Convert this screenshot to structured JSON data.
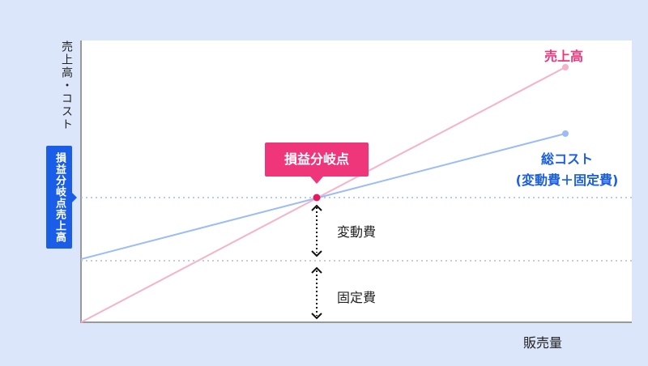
{
  "axes": {
    "y_label": "売上高・コスト",
    "x_label": "販売量"
  },
  "break_even": {
    "callout": "損益分岐点",
    "y_tag": "損益分岐点売上高"
  },
  "lines": {
    "sales": {
      "label": "売上高",
      "color": "#f5b3c8"
    },
    "total_cost": {
      "label_line1": "総コスト",
      "label_line2": "(変動費＋固定費)",
      "color": "#9bbcf7"
    }
  },
  "segments": {
    "variable": "変動費",
    "fixed": "固定費"
  },
  "colors": {
    "accent_pink": "#f0367a",
    "accent_blue": "#1a5ee8",
    "background": "#dbe6fb"
  }
}
